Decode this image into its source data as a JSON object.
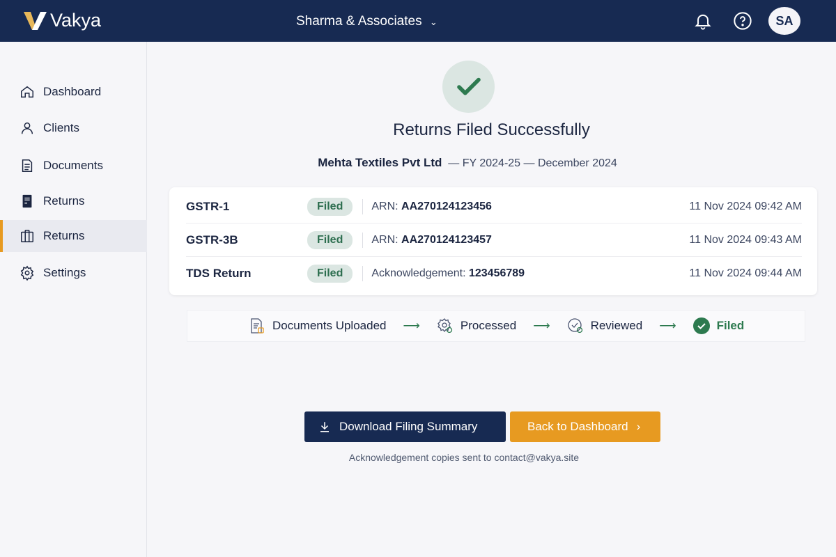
{
  "header": {
    "brand": "Vakya",
    "organization": "Sharma & Associates",
    "avatar_initials": "SA"
  },
  "sidebar": {
    "items": [
      {
        "label": "Dashboard",
        "icon": "home-icon"
      },
      {
        "label": "Clients",
        "icon": "user-icon"
      },
      {
        "label": "Documents",
        "icon": "document-icon"
      },
      {
        "label": "Returns",
        "icon": "returns-icon"
      },
      {
        "label": "Returns",
        "icon": "columns-icon",
        "active": true
      },
      {
        "label": "Settings",
        "icon": "gear-icon"
      }
    ]
  },
  "main": {
    "title": "Returns Filed Successfully",
    "client": "Mehta Textiles Pvt Ltd",
    "fy": "— FY 2024-25 — December 2024",
    "returns": [
      {
        "name": "GSTR-1",
        "status": "Filed",
        "ref_label": "ARN:",
        "ref_value": "AA270124123456",
        "time": "11 Nov 2024 09:42 AM"
      },
      {
        "name": "GSTR-3B",
        "status": "Filed",
        "ref_label": "ARN:",
        "ref_value": "AA270124123457",
        "time": "11 Nov 2024 09:43 AM"
      },
      {
        "name": "TDS Return",
        "status": "Filed",
        "ref_label": "Acknowledgement:",
        "ref_value": "123456789",
        "time": "11 Nov 2024 09:44 AM"
      }
    ],
    "steps": [
      "Documents Uploaded",
      "Processed",
      "Reviewed",
      "Filed"
    ],
    "arrow": "⟶",
    "download_label": "Download Filing Summary",
    "back_label": "Back to Dashboard",
    "note": "Acknowledgement copies sent to contact@vakya.site"
  },
  "colors": {
    "navy": "#172a52",
    "accent": "#e79a21",
    "success": "#2d7a4f"
  }
}
